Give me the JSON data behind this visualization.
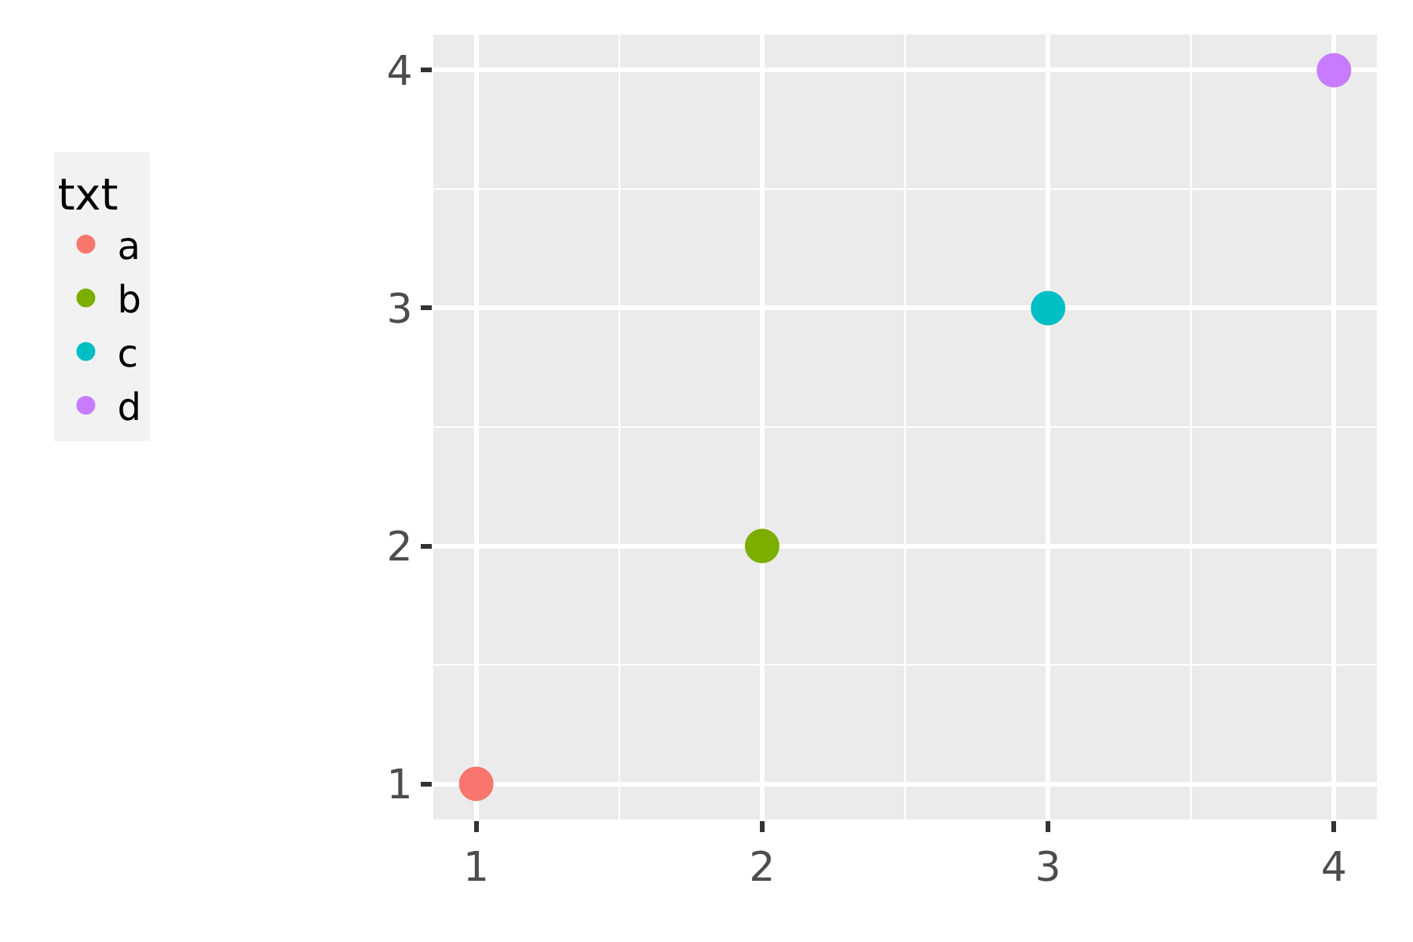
{
  "chart_data": {
    "type": "scatter",
    "legend_title": "txt",
    "legend": "left",
    "grid": true,
    "marker": "circle",
    "series": [
      {
        "name": "a",
        "color": "#f8766d",
        "x": [
          1
        ],
        "values": [
          1
        ]
      },
      {
        "name": "b",
        "color": "#7cae00",
        "x": [
          2
        ],
        "values": [
          2
        ]
      },
      {
        "name": "c",
        "color": "#00bfc4",
        "x": [
          3
        ],
        "values": [
          3
        ]
      },
      {
        "name": "d",
        "color": "#c77cff",
        "x": [
          4
        ],
        "values": [
          4
        ]
      }
    ],
    "xlim": [
      0.85,
      4.15
    ],
    "ylim": [
      0.85,
      4.15
    ],
    "xticks": [
      1,
      2,
      3,
      4
    ],
    "yticks": [
      1,
      2,
      3,
      4
    ]
  }
}
